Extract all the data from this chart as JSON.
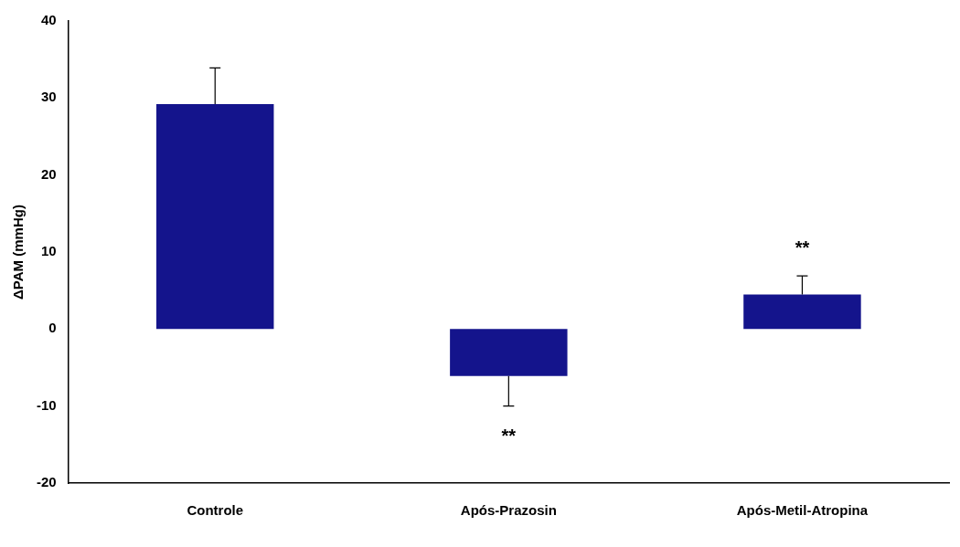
{
  "chart_data": {
    "type": "bar",
    "ylabel": "ΔPAM (mmHg)",
    "categories": [
      "Controle",
      "Após-Prazosin",
      "Após-Metil-Atropina"
    ],
    "values": [
      29.2,
      -6.1,
      4.5
    ],
    "errors": [
      [
        29.2,
        33.9
      ],
      [
        -10.0,
        -6.1
      ],
      [
        4.5,
        6.9
      ]
    ],
    "color": "#14148c",
    "ylim": [
      -20,
      40
    ],
    "yticks": [
      -20,
      -10,
      0,
      10,
      20,
      30,
      40
    ],
    "grid": false,
    "legend": false,
    "annotations": [
      "**",
      "**"
    ]
  }
}
